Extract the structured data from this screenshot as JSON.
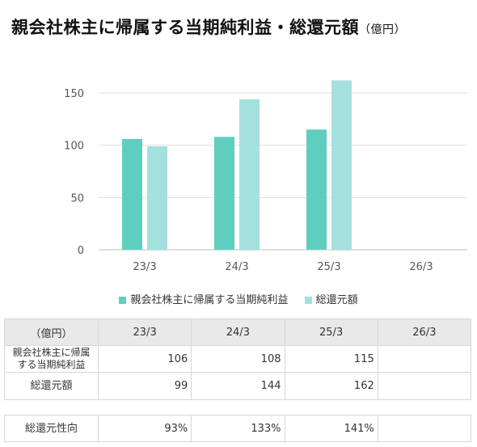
{
  "title": "親会社株主に帰属する当期純利益・総還元額",
  "title_unit": "（億円）",
  "chart_data": {
    "type": "bar",
    "categories": [
      "23/3",
      "24/3",
      "25/3",
      "26/3"
    ],
    "series": [
      {
        "name": "親会社株主に帰属する当期純利益",
        "values": [
          106,
          108,
          115,
          null
        ],
        "color": "#5ecfbf"
      },
      {
        "name": "総還元額",
        "values": [
          99,
          144,
          162,
          null
        ],
        "color": "#a3e0de"
      }
    ],
    "yticks": [
      0,
      50,
      100,
      150
    ],
    "ylim": [
      0,
      162
    ],
    "grid": true,
    "legend": "bottom"
  },
  "table": {
    "corner": "（億円）",
    "headers": [
      "23/3",
      "24/3",
      "25/3",
      "26/3"
    ],
    "rows": [
      {
        "label_line1": "親会社株主に帰属",
        "label_line2": "する当期純利益",
        "values": [
          "106",
          "108",
          "115",
          ""
        ]
      },
      {
        "label": "総還元額",
        "values": [
          "99",
          "144",
          "162",
          ""
        ]
      }
    ],
    "ratio": {
      "label": "総還元性向",
      "values": [
        "93%",
        "133%",
        "141%",
        ""
      ]
    }
  }
}
